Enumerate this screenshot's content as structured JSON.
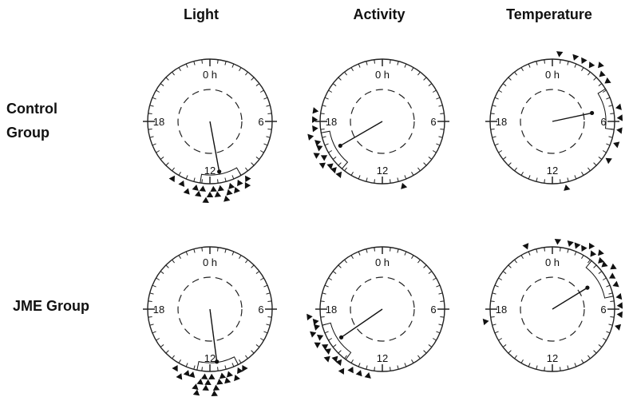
{
  "columns": [
    "Light",
    "Activity",
    "Temperature"
  ],
  "rows": [
    {
      "line1": "Control",
      "line2": "Group"
    },
    {
      "line1": "JME Group",
      "line2": ""
    }
  ],
  "hour_labels": {
    "h0": "0 h",
    "h6": "6",
    "h12": "12",
    "h18": "18"
  },
  "chart_data": [
    {
      "type": "circular",
      "group": "Control Group",
      "variable": "Light",
      "mean_vector": {
        "hour": 11.3,
        "length": 0.82
      },
      "individual_acrophases_hours": [
        9.8,
        10.0,
        10.3,
        10.6,
        10.8,
        11.0,
        11.2,
        11.4,
        11.6,
        11.8,
        12.0,
        12.2,
        12.4,
        12.6,
        12.8,
        13.2,
        13.6,
        14.2
      ]
    },
    {
      "type": "circular",
      "group": "Control Group",
      "variable": "Activity",
      "mean_vector": {
        "hour": 16.0,
        "length": 0.78
      },
      "individual_acrophases_hours": [
        10.8,
        14.6,
        15.0,
        15.3,
        15.6,
        15.9,
        16.2,
        16.5,
        16.8,
        17.2,
        17.6,
        18.1,
        18.6
      ]
    },
    {
      "type": "circular",
      "group": "Control Group",
      "variable": "Temperature",
      "mean_vector": {
        "hour": 5.2,
        "length": 0.65
      },
      "individual_acrophases_hours": [
        0.4,
        1.3,
        1.8,
        2.3,
        2.7,
        3.1,
        3.6,
        5.2,
        5.8,
        6.5,
        7.3,
        8.3,
        11.2
      ]
    },
    {
      "type": "circular",
      "group": "JME Group",
      "variable": "Light",
      "mean_vector": {
        "hour": 11.5,
        "length": 0.85
      },
      "individual_acrophases_hours": [
        10.0,
        10.3,
        10.6,
        10.9,
        11.1,
        11.3,
        11.5,
        11.7,
        11.9,
        12.1,
        12.3,
        12.5,
        12.7,
        13.0,
        13.3,
        13.6,
        14.0,
        12.2,
        11.8,
        12.6
      ]
    },
    {
      "type": "circular",
      "group": "JME Group",
      "variable": "Activity",
      "mean_vector": {
        "hour": 15.7,
        "length": 0.8
      },
      "individual_acrophases_hours": [
        12.8,
        13.3,
        13.8,
        14.2,
        14.6,
        14.9,
        15.2,
        15.5,
        15.8,
        16.1,
        16.4,
        16.7,
        17.0,
        17.3,
        17.6
      ]
    },
    {
      "type": "circular",
      "group": "JME Group",
      "variable": "Temperature",
      "mean_vector": {
        "hour": 3.9,
        "length": 0.66
      },
      "individual_acrophases_hours": [
        0.3,
        1.0,
        1.4,
        1.8,
        2.1,
        2.4,
        2.7,
        3.0,
        3.3,
        3.7,
        4.1,
        4.6,
        5.3,
        5.8,
        6.3,
        7.0,
        17.3,
        22.5
      ]
    }
  ]
}
